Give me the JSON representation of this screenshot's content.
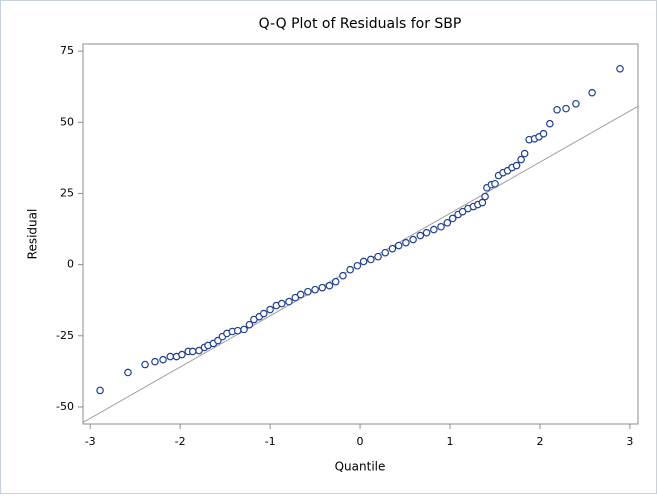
{
  "chart_data": {
    "type": "scatter",
    "title": "Q-Q Plot of Residuals for SBP",
    "x_label": "Quantile",
    "y_label": "Residual",
    "xlim": [
      -3.08,
      3.09
    ],
    "ylim": [
      -56,
      77.5
    ],
    "xticks": [
      -3,
      -2,
      -1,
      0,
      1,
      2,
      3
    ],
    "yticks": [
      -50,
      -25,
      0,
      25,
      50,
      75
    ],
    "marker_color": "#1f3f8f",
    "reference_line": {
      "intercept": 0,
      "slope": 18,
      "color": "#a0a0a0"
    },
    "x": [
      -2.89,
      -2.58,
      -2.39,
      -2.28,
      -2.19,
      -2.11,
      -2.04,
      -1.98,
      -1.91,
      -1.86,
      -1.79,
      -1.73,
      -1.69,
      -1.63,
      -1.58,
      -1.53,
      -1.48,
      -1.42,
      -1.36,
      -1.29,
      -1.23,
      -1.18,
      -1.12,
      -1.07,
      -1.0,
      -0.93,
      -0.87,
      -0.79,
      -0.72,
      -0.66,
      -0.58,
      -0.5,
      -0.42,
      -0.34,
      -0.27,
      -0.19,
      -0.11,
      -0.03,
      0.04,
      0.12,
      0.2,
      0.28,
      0.36,
      0.43,
      0.51,
      0.59,
      0.67,
      0.74,
      0.82,
      0.9,
      0.97,
      1.03,
      1.09,
      1.14,
      1.2,
      1.26,
      1.31,
      1.36,
      1.39,
      1.41,
      1.46,
      1.5,
      1.54,
      1.59,
      1.64,
      1.69,
      1.74,
      1.79,
      1.83,
      1.88,
      1.94,
      1.99,
      2.04,
      2.11,
      2.19,
      2.29,
      2.4,
      2.58,
      2.89
    ],
    "values": [
      -44.2,
      -37.9,
      -35.1,
      -34.1,
      -33.4,
      -32.3,
      -32.3,
      -31.6,
      -30.5,
      -30.5,
      -30.2,
      -29.1,
      -28.4,
      -27.7,
      -26.7,
      -25.3,
      -24.2,
      -23.5,
      -23.2,
      -22.8,
      -21.1,
      -19.3,
      -18.3,
      -17.2,
      -15.8,
      -14.4,
      -13.7,
      -13.0,
      -11.6,
      -10.5,
      -9.5,
      -8.8,
      -8.1,
      -7.4,
      -6.0,
      -3.9,
      -1.8,
      -0.4,
      1.1,
      1.8,
      2.8,
      4.2,
      5.6,
      6.7,
      7.7,
      8.8,
      10.2,
      11.2,
      12.3,
      13.3,
      14.7,
      16.2,
      17.6,
      18.6,
      19.7,
      20.4,
      21.1,
      21.8,
      23.9,
      27.0,
      28.1,
      28.4,
      31.3,
      32.3,
      33.0,
      34.1,
      34.8,
      36.9,
      39.0,
      43.9,
      44.2,
      44.9,
      46.0,
      49.5,
      54.4,
      54.8,
      56.5,
      60.4,
      68.8
    ]
  }
}
